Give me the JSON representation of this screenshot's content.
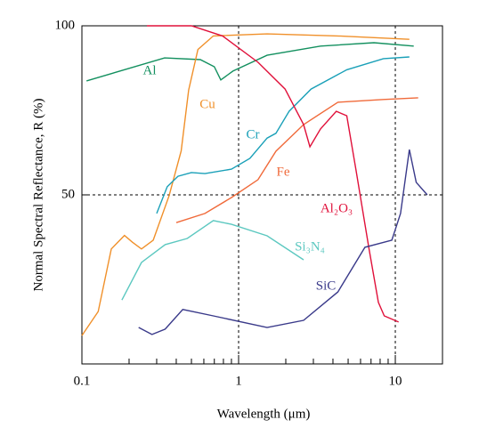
{
  "chart_data": {
    "type": "line",
    "xlabel": "Wavelength (μm)",
    "ylabel": "Normal Spectral Reflectance, R (%)",
    "xscale": "log",
    "xlim": [
      0.1,
      20
    ],
    "ylim": [
      0,
      100
    ],
    "xticks": [
      0.1,
      1,
      10
    ],
    "xminorticks": [
      0.2,
      0.3,
      0.4,
      0.5,
      0.6,
      0.7,
      0.8,
      0.9,
      2,
      3,
      4,
      5,
      6,
      7,
      8,
      9
    ],
    "yticks": [
      50,
      100
    ],
    "grid": true,
    "series": [
      {
        "name": "Al",
        "color": "#13905f",
        "x": [
          0.107,
          0.337,
          0.57,
          0.7,
          0.77,
          0.92,
          1.52,
          3.33,
          7.3,
          13.1
        ],
        "values": [
          83.7,
          90.5,
          90,
          87.9,
          84,
          86.6,
          91.3,
          94,
          95,
          94
        ]
      },
      {
        "name": "Cu",
        "color": "#f0902a",
        "x": [
          0.1,
          0.127,
          0.154,
          0.187,
          0.21,
          0.24,
          0.285,
          0.36,
          0.43,
          0.48,
          0.55,
          0.69,
          1.52,
          4.3,
          12.3
        ],
        "values": [
          8.4,
          15.5,
          34,
          38,
          36,
          34,
          36.6,
          49.7,
          63,
          81,
          93,
          97,
          97.6,
          97,
          96
        ]
      },
      {
        "name": "Cr",
        "color": "#1aa0b8",
        "x": [
          0.3,
          0.35,
          0.41,
          0.5,
          0.61,
          0.9,
          1.18,
          1.52,
          1.73,
          2.1,
          2.9,
          4.9,
          8.4,
          12.3
        ],
        "values": [
          44.5,
          52.4,
          55.5,
          56.6,
          56.3,
          57.6,
          60.8,
          66.8,
          68.2,
          74.7,
          81.3,
          87,
          90.3,
          90.8
        ]
      },
      {
        "name": "Fe",
        "color": "#f06a3a",
        "x": [
          0.4,
          0.61,
          0.9,
          1.33,
          1.73,
          2.6,
          4.3,
          8.4,
          14
        ],
        "values": [
          41.8,
          44.5,
          49.2,
          54.5,
          62.9,
          70.8,
          77.4,
          78.2,
          78.7
        ]
      },
      {
        "name": "Al₂O₃",
        "color": "#e0103a",
        "x": [
          0.26,
          0.5,
          0.79,
          1.33,
          1.98,
          2.6,
          2.85,
          3.33,
          4.2,
          4.9,
          5.6,
          6.8,
          7.8,
          8.5,
          10.5
        ],
        "values": [
          100,
          100,
          97,
          89.2,
          81.3,
          70.8,
          64.2,
          69.5,
          74.7,
          73.4,
          57.6,
          34,
          18.2,
          14.2,
          12.4
        ]
      },
      {
        "name": "Si₃N₄",
        "color": "#5cc8c0",
        "x": [
          0.18,
          0.24,
          0.34,
          0.47,
          0.69,
          0.9,
          1.52,
          2.6
        ],
        "values": [
          18.9,
          30,
          35.3,
          37.1,
          42.4,
          41.3,
          37.9,
          30.8
        ]
      },
      {
        "name": "SiC",
        "color": "#3a3a8a",
        "x": [
          0.23,
          0.28,
          0.34,
          0.44,
          0.69,
          1.52,
          2.6,
          4.3,
          6.4,
          9.5,
          10.8,
          12.3,
          13.6,
          16
        ],
        "values": [
          10.8,
          8.7,
          10.3,
          16.1,
          14.2,
          10.8,
          12.9,
          21.3,
          34.5,
          36.6,
          44.5,
          63.4,
          53.7,
          50
        ]
      }
    ]
  }
}
